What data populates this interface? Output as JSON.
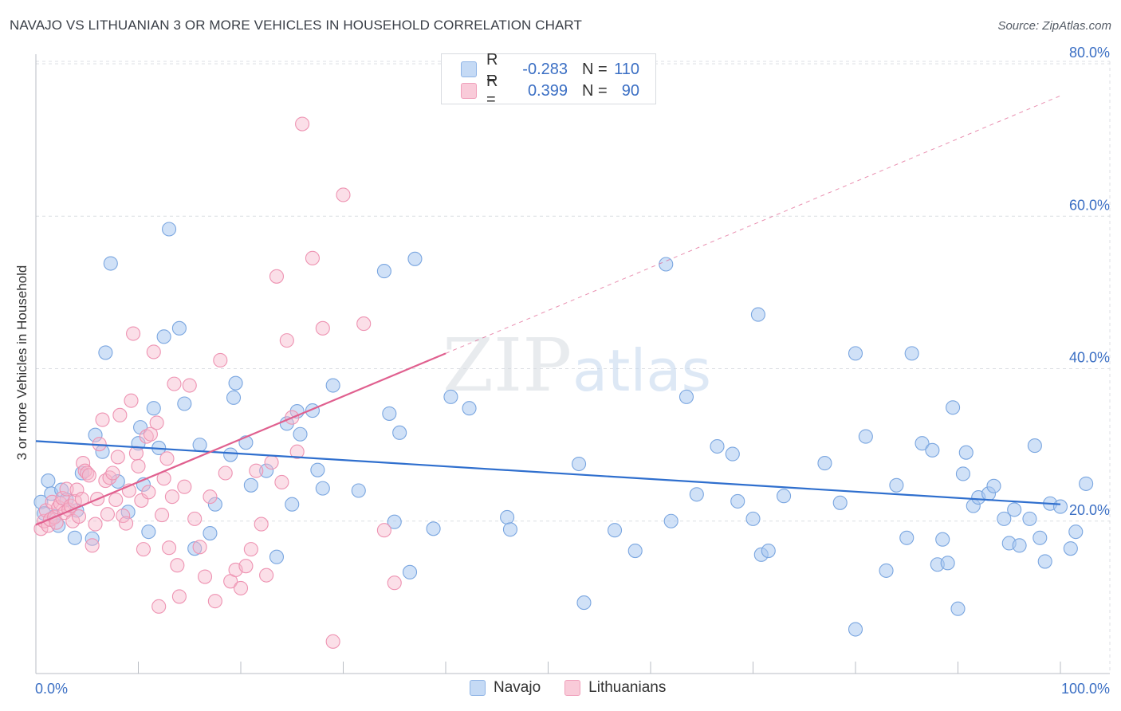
{
  "title": "NAVAJO VS LITHUANIAN 3 OR MORE VEHICLES IN HOUSEHOLD CORRELATION CHART",
  "source": "Source: ZipAtlas.com",
  "watermark": {
    "zip": "ZIP",
    "atlas": "atlas"
  },
  "colors": {
    "navajo_fill": "#a9c8f0",
    "navajo_stroke": "#7aa6e0",
    "navajo_line": "#2f6fce",
    "lith_fill": "#f6b8cc",
    "lith_stroke": "#ee93b2",
    "lith_line": "#e0608f",
    "axis_text": "#3b6fc4",
    "grid": "#dcdfe4"
  },
  "legend": {
    "navajo": {
      "r_label": "R =",
      "r_value": "-0.283",
      "n_label": "N =",
      "n_value": "110"
    },
    "lithuanian": {
      "r_label": "R =",
      "r_value": "0.399",
      "n_label": "N =",
      "n_value": "90"
    }
  },
  "bottom_legend": {
    "navajo": "Navajo",
    "lithuanian": "Lithuanians"
  },
  "chart_data": {
    "type": "scatter",
    "title": "NAVAJO VS LITHUANIAN 3 OR MORE VEHICLES IN HOUSEHOLD CORRELATION CHART",
    "xlabel": "",
    "ylabel": "3 or more Vehicles in Household",
    "xlim": [
      0,
      100
    ],
    "ylim": [
      0,
      80
    ],
    "x_tick_labels": [
      {
        "value": 0,
        "label": "0.0%"
      },
      {
        "value": 100,
        "label": "100.0%"
      }
    ],
    "y_tick_labels": [
      {
        "value": 20,
        "label": "20.0%"
      },
      {
        "value": 40,
        "label": "40.0%"
      },
      {
        "value": 60,
        "label": "60.0%"
      },
      {
        "value": 80,
        "label": "80.0%"
      }
    ],
    "series": [
      {
        "name": "Navajo",
        "trend": {
          "x": [
            0,
            100
          ],
          "y": [
            30.5,
            22.2
          ]
        },
        "points": [
          [
            1.2,
            25.3
          ],
          [
            1.5,
            23.6
          ],
          [
            1.8,
            20.6
          ],
          [
            2.5,
            24.1
          ],
          [
            3,
            22.8
          ],
          [
            4,
            21.4
          ],
          [
            3.8,
            17.8
          ],
          [
            4.5,
            26.3
          ],
          [
            5.5,
            17.7
          ],
          [
            5.8,
            31.3
          ],
          [
            6.5,
            29.1
          ],
          [
            6.8,
            42.1
          ],
          [
            7.3,
            53.8
          ],
          [
            8,
            25.2
          ],
          [
            9,
            21.2
          ],
          [
            10,
            30.2
          ],
          [
            10.2,
            32.3
          ],
          [
            10.5,
            24.8
          ],
          [
            11,
            18.6
          ],
          [
            11.5,
            34.8
          ],
          [
            12,
            29.6
          ],
          [
            12.5,
            44.2
          ],
          [
            13,
            58.3
          ],
          [
            14,
            45.3
          ],
          [
            14.5,
            35.4
          ],
          [
            15.5,
            16.4
          ],
          [
            16,
            30.0
          ],
          [
            17,
            18.4
          ],
          [
            17.5,
            22.2
          ],
          [
            19,
            28.7
          ],
          [
            19.3,
            36.2
          ],
          [
            19.5,
            38.1
          ],
          [
            20.5,
            30.3
          ],
          [
            21,
            24.7
          ],
          [
            22.5,
            26.6
          ],
          [
            23.5,
            15.3
          ],
          [
            24.5,
            32.8
          ],
          [
            25,
            22.2
          ],
          [
            25.5,
            34.4
          ],
          [
            25.8,
            31.4
          ],
          [
            27,
            34.5
          ],
          [
            27.5,
            26.7
          ],
          [
            28,
            24.3
          ],
          [
            29,
            37.8
          ],
          [
            31.5,
            24.0
          ],
          [
            34,
            52.8
          ],
          [
            34.5,
            34.1
          ],
          [
            35,
            19.9
          ],
          [
            35.5,
            31.6
          ],
          [
            36.5,
            13.3
          ],
          [
            37,
            54.4
          ],
          [
            38.8,
            19.0
          ],
          [
            40.5,
            36.3
          ],
          [
            42.3,
            34.8
          ],
          [
            46,
            20.5
          ],
          [
            46.3,
            18.9
          ],
          [
            53,
            27.5
          ],
          [
            53.5,
            9.3
          ],
          [
            56.5,
            18.8
          ],
          [
            58.5,
            16.1
          ],
          [
            61.5,
            53.7
          ],
          [
            62,
            20.0
          ],
          [
            63.5,
            36.3
          ],
          [
            64.5,
            23.5
          ],
          [
            66.5,
            29.8
          ],
          [
            68,
            28.8
          ],
          [
            68.5,
            22.6
          ],
          [
            70,
            20.3
          ],
          [
            70.5,
            47.1
          ],
          [
            70.8,
            15.6
          ],
          [
            71.5,
            16.1
          ],
          [
            73,
            23.3
          ],
          [
            77,
            27.6
          ],
          [
            78.5,
            22.4
          ],
          [
            80,
            42.0
          ],
          [
            80,
            5.8
          ],
          [
            81,
            31.1
          ],
          [
            83,
            13.5
          ],
          [
            84,
            24.7
          ],
          [
            85,
            17.8
          ],
          [
            85.5,
            42.0
          ],
          [
            86.5,
            30.2
          ],
          [
            87.5,
            29.3
          ],
          [
            88,
            14.3
          ],
          [
            88.5,
            17.6
          ],
          [
            89,
            14.5
          ],
          [
            89.5,
            34.9
          ],
          [
            90,
            8.5
          ],
          [
            90.5,
            26.2
          ],
          [
            90.8,
            29.0
          ],
          [
            91.5,
            22.0
          ],
          [
            92,
            23.1
          ],
          [
            93,
            23.6
          ],
          [
            93.5,
            24.6
          ],
          [
            94.5,
            20.3
          ],
          [
            95,
            17.1
          ],
          [
            95.5,
            21.5
          ],
          [
            96,
            16.8
          ],
          [
            97,
            20.3
          ],
          [
            97.5,
            29.9
          ],
          [
            98,
            17.8
          ],
          [
            98.5,
            14.7
          ],
          [
            99,
            22.3
          ],
          [
            100,
            21.9
          ],
          [
            101,
            16.4
          ],
          [
            101.5,
            18.6
          ],
          [
            102.5,
            24.9
          ],
          [
            0.5,
            22.5
          ],
          [
            0.8,
            21.0
          ],
          [
            2.2,
            19.4
          ]
        ]
      },
      {
        "name": "Lithuanians",
        "trend": {
          "x": [
            0,
            40
          ],
          "y": [
            19.5,
            42.0
          ]
        },
        "trend_extension": {
          "x": [
            40,
            100
          ],
          "y": [
            42.0,
            75.8
          ]
        },
        "points": [
          [
            0.5,
            19.0
          ],
          [
            0.8,
            20.0
          ],
          [
            1,
            21.4
          ],
          [
            1.2,
            19.4
          ],
          [
            1.4,
            20.2
          ],
          [
            1.6,
            22.5
          ],
          [
            1.8,
            20.5
          ],
          [
            2,
            19.8
          ],
          [
            2.2,
            21.8
          ],
          [
            2.4,
            22.3
          ],
          [
            2.6,
            23.0
          ],
          [
            2.8,
            21.1
          ],
          [
            3,
            24.2
          ],
          [
            3.2,
            21.5
          ],
          [
            3.4,
            22.0
          ],
          [
            3.6,
            20.0
          ],
          [
            3.8,
            22.6
          ],
          [
            4,
            24.1
          ],
          [
            4.2,
            20.6
          ],
          [
            4.5,
            22.9
          ],
          [
            4.6,
            27.6
          ],
          [
            4.8,
            26.6
          ],
          [
            5,
            26.3
          ],
          [
            5.2,
            26.0
          ],
          [
            5.5,
            16.8
          ],
          [
            5.8,
            19.6
          ],
          [
            6,
            22.9
          ],
          [
            6.2,
            30.1
          ],
          [
            6.5,
            33.3
          ],
          [
            6.8,
            25.3
          ],
          [
            7,
            20.9
          ],
          [
            7.2,
            25.7
          ],
          [
            7.5,
            26.3
          ],
          [
            7.8,
            22.8
          ],
          [
            8,
            28.4
          ],
          [
            8.2,
            33.9
          ],
          [
            8.5,
            20.7
          ],
          [
            8.8,
            19.7
          ],
          [
            9.1,
            24.0
          ],
          [
            9.3,
            35.8
          ],
          [
            9.5,
            44.6
          ],
          [
            9.8,
            28.9
          ],
          [
            10,
            27.2
          ],
          [
            10.3,
            22.7
          ],
          [
            10.5,
            16.3
          ],
          [
            10.8,
            31.1
          ],
          [
            11,
            23.8
          ],
          [
            11.2,
            31.4
          ],
          [
            11.5,
            42.2
          ],
          [
            11.8,
            32.9
          ],
          [
            12,
            8.8
          ],
          [
            12.3,
            20.8
          ],
          [
            12.5,
            25.6
          ],
          [
            12.8,
            28.2
          ],
          [
            13,
            16.5
          ],
          [
            13.3,
            23.2
          ],
          [
            13.5,
            38.0
          ],
          [
            13.8,
            14.2
          ],
          [
            14,
            10.1
          ],
          [
            14.5,
            24.5
          ],
          [
            15,
            37.8
          ],
          [
            15.5,
            20.3
          ],
          [
            16,
            16.6
          ],
          [
            16.5,
            12.7
          ],
          [
            17,
            23.2
          ],
          [
            17.5,
            9.5
          ],
          [
            18,
            41.1
          ],
          [
            18.5,
            26.3
          ],
          [
            19,
            12.1
          ],
          [
            19.5,
            13.6
          ],
          [
            20,
            11.2
          ],
          [
            20.5,
            14.1
          ],
          [
            21,
            16.3
          ],
          [
            21.5,
            26.6
          ],
          [
            22,
            19.6
          ],
          [
            22.5,
            12.9
          ],
          [
            23,
            27.7
          ],
          [
            23.5,
            52.1
          ],
          [
            24,
            25.1
          ],
          [
            24.5,
            43.7
          ],
          [
            25,
            33.6
          ],
          [
            25.5,
            29.1
          ],
          [
            26,
            72.1
          ],
          [
            27,
            54.5
          ],
          [
            28,
            45.3
          ],
          [
            29,
            4.2
          ],
          [
            30,
            62.8
          ],
          [
            32,
            45.9
          ],
          [
            34,
            18.8
          ],
          [
            35,
            11.9
          ]
        ]
      }
    ]
  }
}
